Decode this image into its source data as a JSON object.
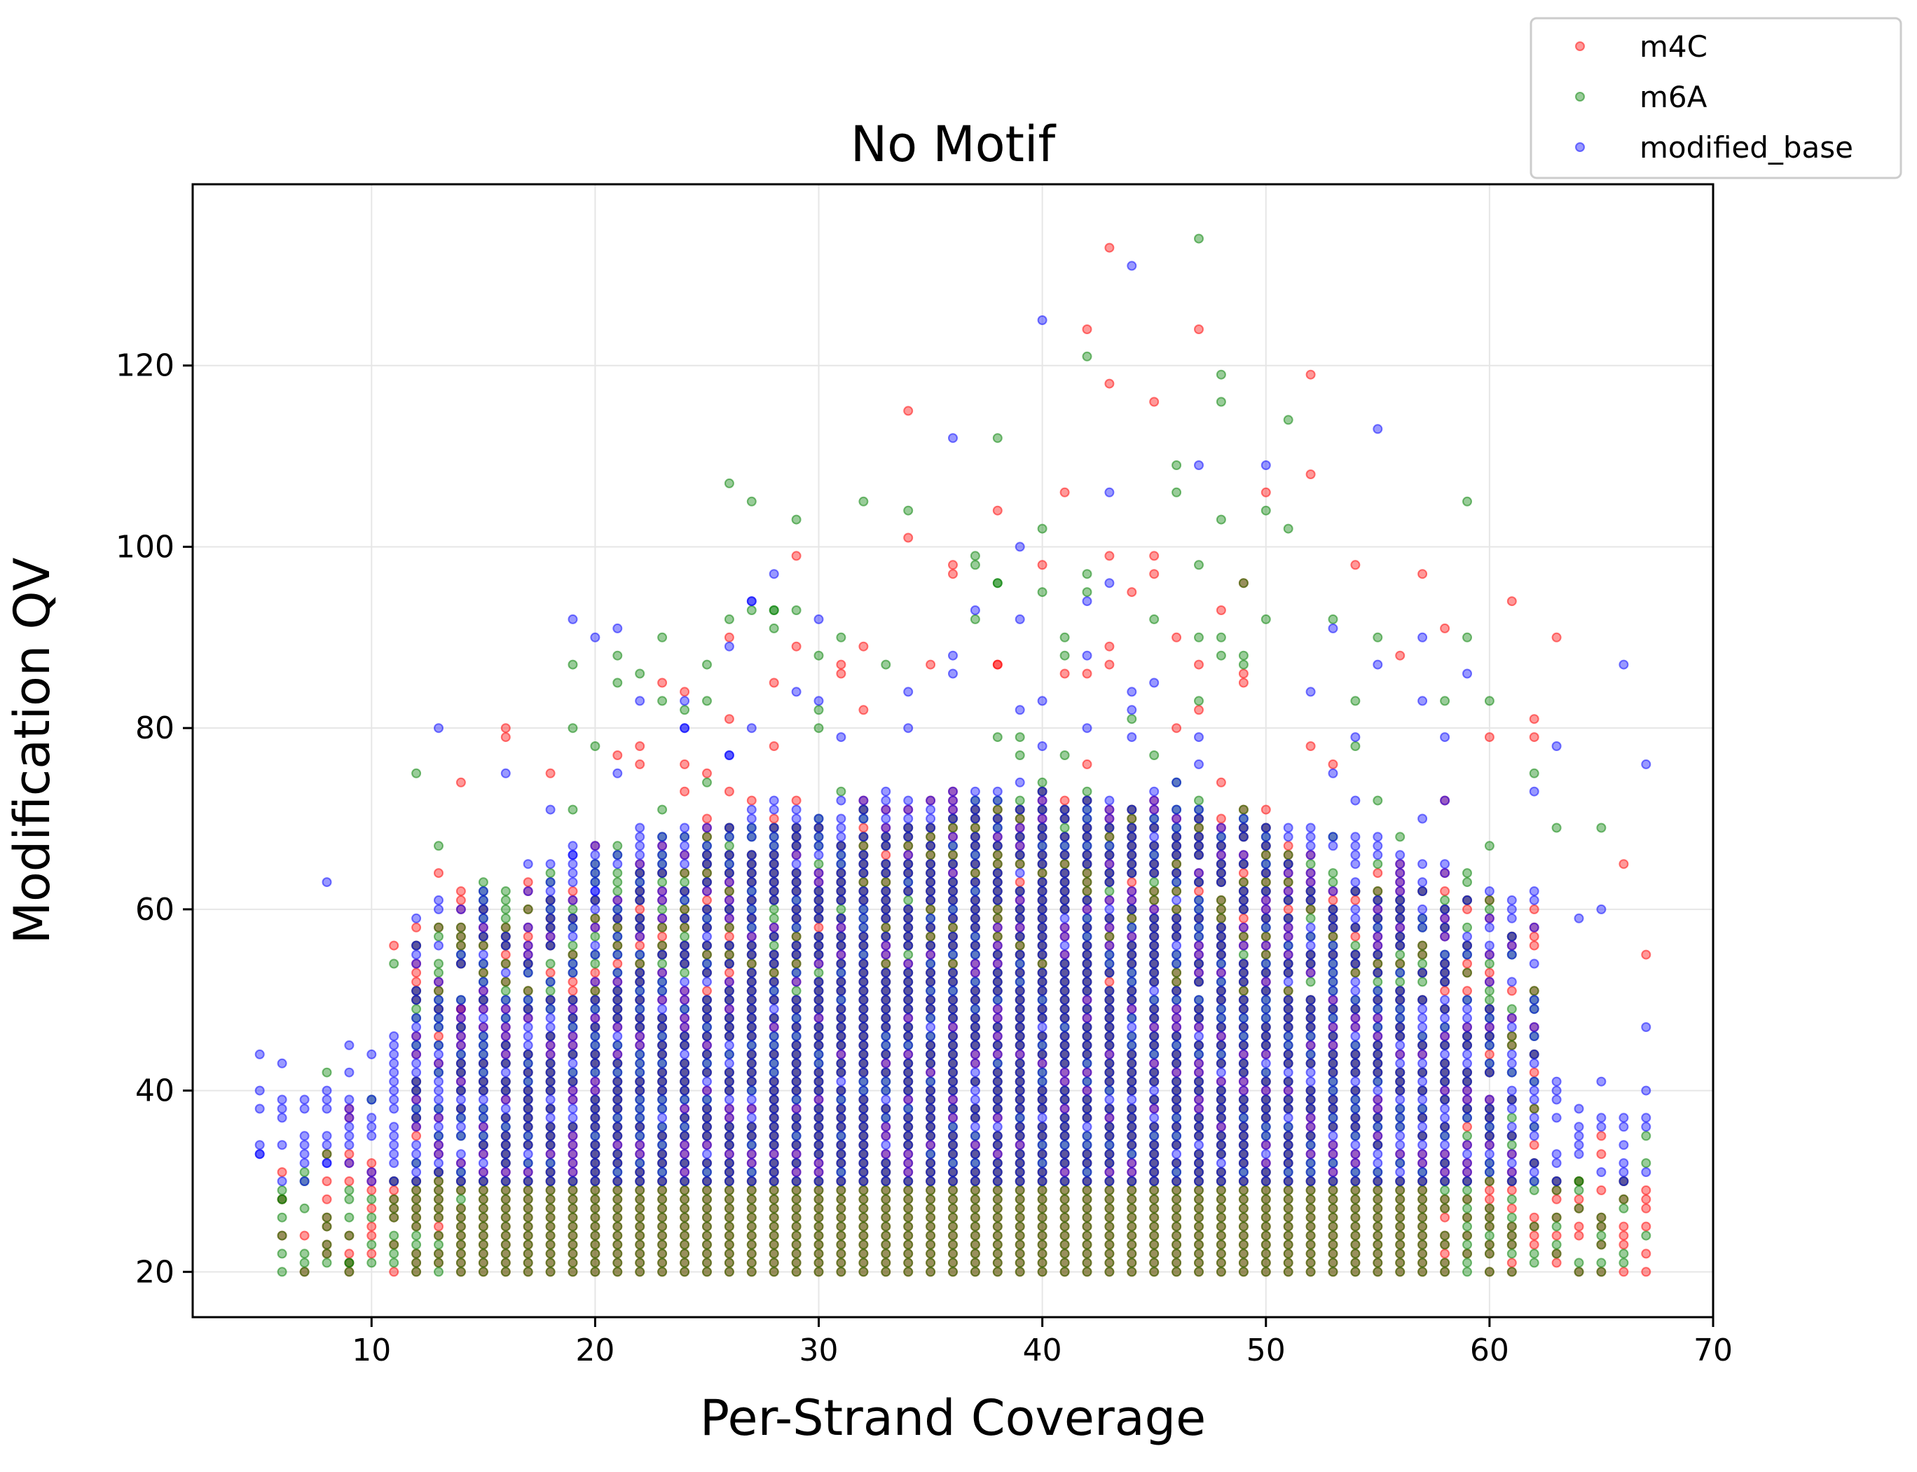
{
  "chart_data": {
    "type": "scatter",
    "title": "No Motif",
    "xlabel": "Per-Strand Coverage",
    "ylabel": "Modification QV",
    "xlim": [
      2,
      70
    ],
    "ylim": [
      15,
      140
    ],
    "xticks": [
      10,
      20,
      30,
      40,
      50,
      60,
      70
    ],
    "yticks": [
      20,
      40,
      60,
      80,
      100,
      120
    ],
    "grid": true,
    "legend_position": "top-right, outside plot",
    "series": [
      {
        "name": "m4C",
        "color": "#ff0000",
        "alpha": 0.4,
        "range_x": [
          6,
          67
        ],
        "floor_y": 20,
        "band_y": [
          20,
          30
        ],
        "outliers": [
          [
            43,
            133
          ],
          [
            42,
            124
          ],
          [
            47,
            124
          ],
          [
            52,
            119
          ],
          [
            43,
            118
          ],
          [
            45,
            116
          ],
          [
            34,
            115
          ],
          [
            41,
            106
          ],
          [
            52,
            108
          ],
          [
            50,
            106
          ],
          [
            38,
            104
          ],
          [
            34,
            101
          ],
          [
            29,
            99
          ],
          [
            43,
            99
          ],
          [
            45,
            99
          ],
          [
            54,
            98
          ],
          [
            57,
            97
          ],
          [
            44,
            95
          ],
          [
            49,
            96
          ],
          [
            61,
            94
          ],
          [
            58,
            91
          ],
          [
            63,
            90
          ],
          [
            26,
            81
          ],
          [
            24,
            73
          ],
          [
            20,
            67
          ],
          [
            17,
            56
          ],
          [
            14,
            49
          ],
          [
            12,
            46
          ],
          [
            9,
            37
          ],
          [
            8,
            33
          ],
          [
            10,
            32
          ],
          [
            67,
            55
          ],
          [
            66,
            65
          ],
          [
            60,
            79
          ],
          [
            62,
            81
          ]
        ]
      },
      {
        "name": "m6A",
        "color": "#008000",
        "alpha": 0.4,
        "range_x": [
          6,
          67
        ],
        "floor_y": 20,
        "band_y": [
          20,
          30
        ],
        "outliers": [
          [
            47,
            134
          ],
          [
            42,
            121
          ],
          [
            48,
            119
          ],
          [
            48,
            116
          ],
          [
            51,
            114
          ],
          [
            38,
            112
          ],
          [
            26,
            107
          ],
          [
            27,
            105
          ],
          [
            32,
            105
          ],
          [
            59,
            105
          ],
          [
            46,
            109
          ],
          [
            46,
            106
          ],
          [
            48,
            103
          ],
          [
            29,
            103
          ],
          [
            34,
            104
          ],
          [
            40,
            102
          ],
          [
            50,
            104
          ],
          [
            51,
            102
          ],
          [
            37,
            99
          ],
          [
            29,
            93
          ],
          [
            28,
            93
          ],
          [
            23,
            83
          ],
          [
            19,
            71
          ],
          [
            18,
            61
          ],
          [
            60,
            83
          ],
          [
            63,
            69
          ],
          [
            65,
            69
          ],
          [
            64,
            30
          ],
          [
            9,
            21
          ],
          [
            6,
            28
          ]
        ]
      },
      {
        "name": "modified_base",
        "color": "#0000ff",
        "alpha": 0.4,
        "range_x": [
          5,
          67
        ],
        "floor_y": 30,
        "band_y": [
          30,
          50
        ],
        "outliers": [
          [
            44,
            131
          ],
          [
            40,
            125
          ],
          [
            55,
            113
          ],
          [
            36,
            112
          ],
          [
            47,
            109
          ],
          [
            50,
            109
          ],
          [
            43,
            106
          ],
          [
            39,
            100
          ],
          [
            27,
            94
          ],
          [
            29,
            84
          ],
          [
            21,
            75
          ],
          [
            24,
            80
          ],
          [
            20,
            62
          ],
          [
            19,
            66
          ],
          [
            15,
            54
          ],
          [
            13,
            41
          ],
          [
            10,
            44
          ],
          [
            10,
            39
          ],
          [
            6,
            34
          ],
          [
            5,
            33
          ],
          [
            8,
            32
          ],
          [
            9,
            32
          ],
          [
            63,
            78
          ],
          [
            66,
            87
          ],
          [
            67,
            76
          ],
          [
            65,
            60
          ],
          [
            59,
            86
          ],
          [
            57,
            90
          ],
          [
            58,
            79
          ],
          [
            55,
            87
          ]
        ]
      }
    ]
  }
}
